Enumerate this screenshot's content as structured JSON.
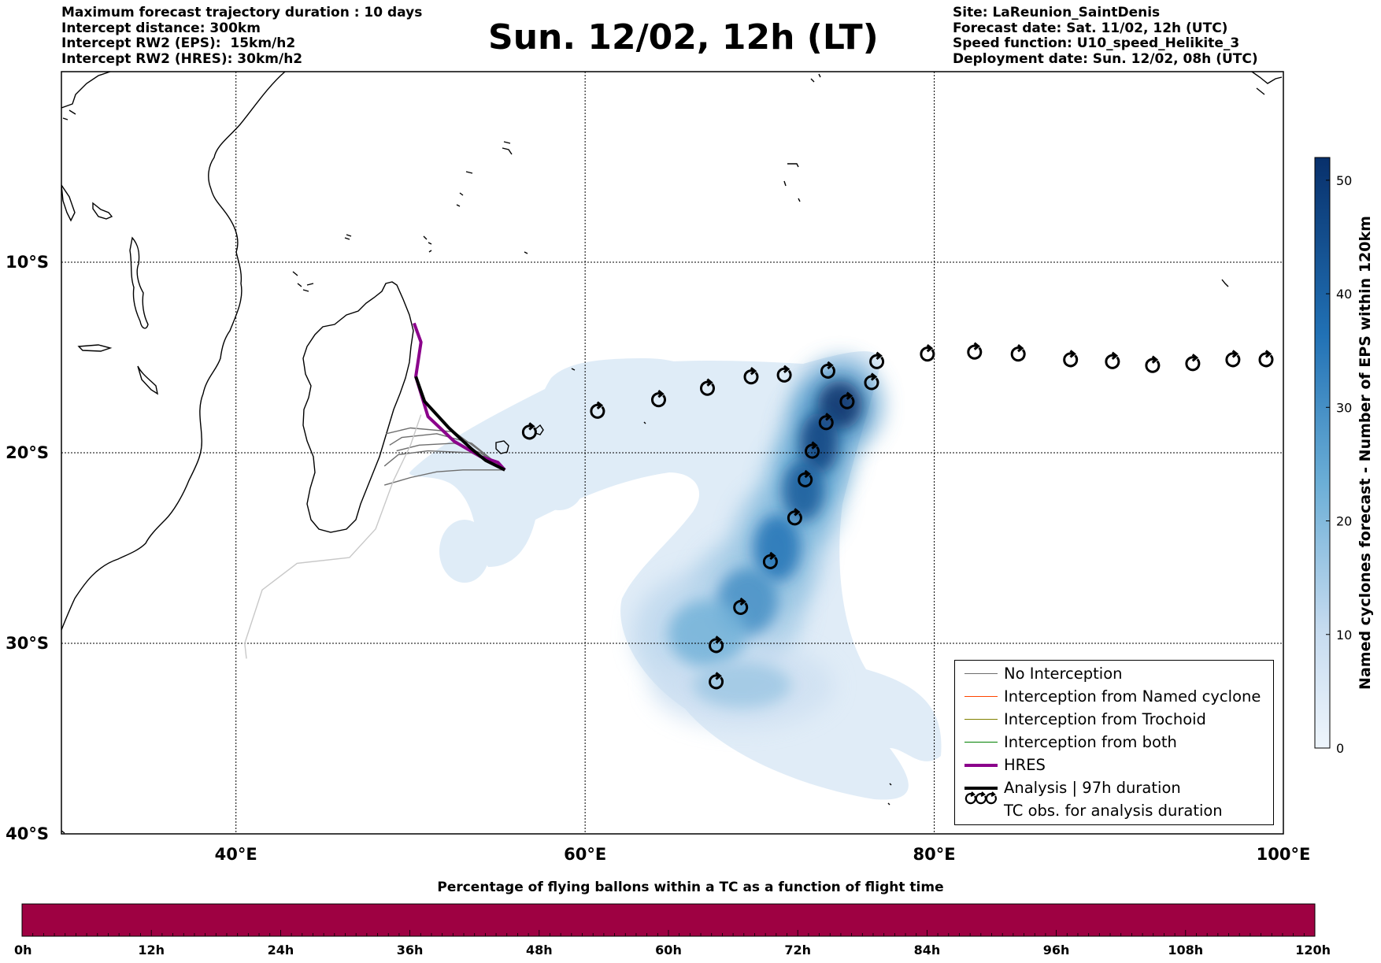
{
  "header": {
    "left": [
      "Maximum forecast trajectory duration : 10 days",
      "Intercept distance: 300km",
      "Intercept RW2 (EPS):  15km/h2",
      "Intercept RW2 (HRES): 30km/h2"
    ],
    "right": [
      "Site: LaReunion_SaintDenis",
      "Forecast date: Sat. 11/02, 12h (UTC)",
      "Speed function: U10_speed_Helikite_3",
      "Deployment date: Sun. 12/02, 08h (UTC)"
    ],
    "title": "Sun. 12/02, 12h (LT)"
  },
  "map": {
    "lon_range": [
      30,
      100
    ],
    "lat_range": [
      -40,
      0
    ],
    "lon_ticks": [
      {
        "value": 40,
        "label": "40°E"
      },
      {
        "value": 60,
        "label": "60°E"
      },
      {
        "value": 80,
        "label": "80°E"
      },
      {
        "value": 100,
        "label": "100°E"
      }
    ],
    "lat_ticks": [
      {
        "value": -10,
        "label": "10°S"
      },
      {
        "value": -20,
        "label": "20°S"
      },
      {
        "value": -30,
        "label": "30°S"
      },
      {
        "value": -40,
        "label": "40°S"
      }
    ],
    "grid": true,
    "colors": {
      "hres": "#8b008b",
      "analysis": "#000000",
      "no_interception": "#6e6e6e",
      "named_cyclone": "#ff4500",
      "trochoid": "#808000",
      "both": "#008000",
      "density_low": "#deebf7",
      "density_high": "#08306b"
    }
  },
  "tc_observations": [
    [
      56.8,
      -18.9
    ],
    [
      60.7,
      -17.8
    ],
    [
      64.2,
      -17.2
    ],
    [
      67.0,
      -16.6
    ],
    [
      69.5,
      -16.0
    ],
    [
      71.4,
      -15.9
    ],
    [
      73.9,
      -15.7
    ],
    [
      76.7,
      -15.2
    ],
    [
      79.6,
      -14.8
    ],
    [
      82.3,
      -14.7
    ],
    [
      84.8,
      -14.8
    ],
    [
      87.8,
      -15.1
    ],
    [
      90.2,
      -15.2
    ],
    [
      92.5,
      -15.4
    ],
    [
      94.8,
      -15.3
    ],
    [
      97.1,
      -15.1
    ],
    [
      99.0,
      -15.1
    ],
    [
      76.4,
      -16.3
    ],
    [
      75.0,
      -17.3
    ],
    [
      73.8,
      -18.4
    ],
    [
      73.0,
      -19.9
    ],
    [
      72.6,
      -21.4
    ],
    [
      72.0,
      -23.4
    ],
    [
      70.6,
      -25.7
    ],
    [
      68.9,
      -28.1
    ],
    [
      67.5,
      -30.1
    ],
    [
      67.5,
      -32.0
    ]
  ],
  "tracks": {
    "hres": [
      [
        50.2,
        -13.2
      ],
      [
        50.6,
        -14.2
      ],
      [
        50.3,
        -16.0
      ],
      [
        51.0,
        -18.1
      ],
      [
        52.5,
        -19.4
      ],
      [
        54.0,
        -20.2
      ],
      [
        55.0,
        -20.5
      ],
      [
        55.4,
        -20.9
      ]
    ],
    "analysis": [
      [
        50.3,
        -16.0
      ],
      [
        50.8,
        -17.3
      ],
      [
        52.2,
        -18.7
      ],
      [
        53.5,
        -19.8
      ],
      [
        54.3,
        -20.4
      ],
      [
        55.4,
        -20.9
      ]
    ],
    "no_interception": [
      [
        [
          55.4,
          -20.9
        ],
        [
          53.0,
          -20.9
        ],
        [
          51.5,
          -21.0
        ],
        [
          50.0,
          -21.3
        ],
        [
          48.5,
          -21.7
        ]
      ],
      [
        [
          55.4,
          -20.9
        ],
        [
          53.5,
          -20.0
        ],
        [
          51.0,
          -19.9
        ],
        [
          49.3,
          -20.1
        ],
        [
          48.5,
          -20.7
        ]
      ],
      [
        [
          55.4,
          -20.9
        ],
        [
          53.5,
          -19.5
        ],
        [
          51.5,
          -19.0
        ],
        [
          49.5,
          -19.2
        ],
        [
          48.8,
          -19.6
        ]
      ],
      [
        [
          55.4,
          -20.9
        ],
        [
          54.0,
          -20.0
        ],
        [
          52.5,
          -19.5
        ],
        [
          50.5,
          -19.6
        ],
        [
          49.2,
          -19.9
        ]
      ],
      [
        [
          55.0,
          -20.6
        ],
        [
          52.5,
          -18.9
        ],
        [
          50.0,
          -18.7
        ],
        [
          48.6,
          -19.0
        ]
      ],
      [
        [
          50.6,
          -18.0
        ],
        [
          50.0,
          -19.6
        ],
        [
          49.0,
          -21.5
        ],
        [
          48.0,
          -24.0
        ],
        [
          46.5,
          -25.5
        ],
        [
          43.5,
          -25.8
        ],
        [
          41.5,
          -27.2
        ],
        [
          40.5,
          -30.0
        ],
        [
          40.6,
          -30.8
        ]
      ]
    ]
  },
  "density_blobs": [
    {
      "lon": 74.6,
      "lat": -17.5,
      "rx": 1.6,
      "ry": 1.6,
      "level": 52
    },
    {
      "lon": 73.4,
      "lat": -19.5,
      "rx": 1.4,
      "ry": 2.0,
      "level": 48
    },
    {
      "lon": 72.5,
      "lat": -22.0,
      "rx": 1.5,
      "ry": 2.0,
      "level": 42
    },
    {
      "lon": 71.0,
      "lat": -25.0,
      "rx": 1.7,
      "ry": 2.2,
      "level": 36
    },
    {
      "lon": 69.3,
      "lat": -27.8,
      "rx": 2.2,
      "ry": 2.2,
      "level": 30
    },
    {
      "lon": 67.0,
      "lat": -29.5,
      "rx": 2.8,
      "ry": 2.2,
      "level": 22
    },
    {
      "lon": 69.0,
      "lat": -32.2,
      "rx": 3.5,
      "ry": 1.5,
      "level": 16
    }
  ],
  "left_colorbar": {
    "label": "Named cyclones forecast - Number of EPS within 120km",
    "range": [
      0,
      52
    ],
    "ticks": [
      0,
      10,
      20,
      30,
      40,
      50
    ]
  },
  "bottom_colorbar": {
    "title": "Percentage of flying ballons within a TC as a function of flight time",
    "color": "#9e0142",
    "ticks": [
      "0h",
      "12h",
      "24h",
      "36h",
      "48h",
      "60h",
      "72h",
      "84h",
      "96h",
      "108h",
      "120h"
    ]
  },
  "legend": [
    {
      "key": "no_interception",
      "label": "No Interception",
      "color": "#6e6e6e",
      "width": 1.2,
      "type": "line"
    },
    {
      "key": "named_cyclone",
      "label": "Interception from Named cyclone",
      "color": "#ff4500",
      "width": 1.2,
      "type": "line"
    },
    {
      "key": "trochoid",
      "label": "Interception from Trochoid",
      "color": "#808000",
      "width": 1.2,
      "type": "line"
    },
    {
      "key": "both",
      "label": "Interception from both",
      "color": "#008000",
      "width": 1.2,
      "type": "line"
    },
    {
      "key": "hres",
      "label": "HRES",
      "color": "#8b008b",
      "width": 4,
      "type": "line"
    },
    {
      "key": "analysis",
      "label": "Analysis | 97h duration",
      "color": "#000000",
      "width": 4,
      "type": "line"
    },
    {
      "key": "tc_obs",
      "label": "TC obs. for analysis duration",
      "color": "#000000",
      "type": "symbol"
    }
  ]
}
